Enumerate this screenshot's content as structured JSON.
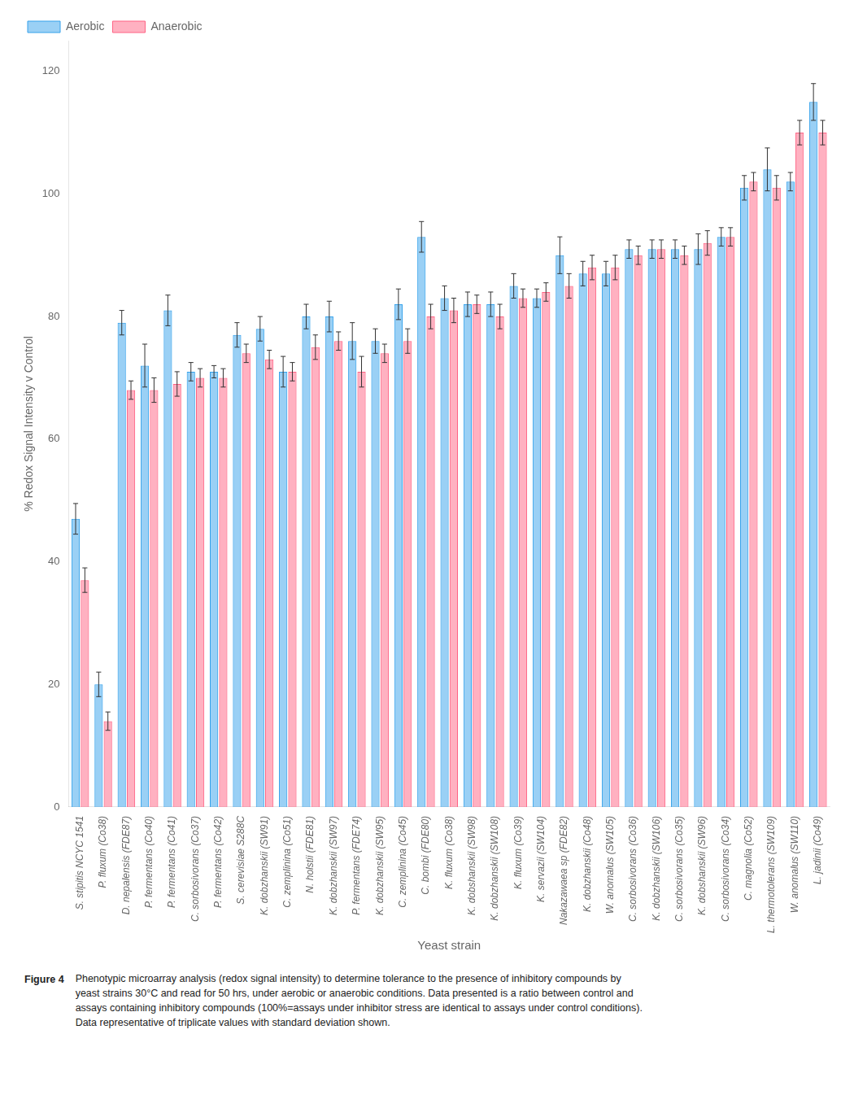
{
  "chart_data": {
    "type": "bar",
    "categories": [
      "S. stipitis NCYC 1541",
      "P. fluxum (Co38)",
      "D. nepalensis (FDE87)",
      "P. fermentans (Co40)",
      "P. fermentans (Co41)",
      "C. sorbosivorans (Co37)",
      "P. fermentans (Co42)",
      "S. cerevisiae S288C",
      "K. dobzhanskii (SW91)",
      "C. zemplinina (Co51)",
      "N. holstii (FDE81)",
      "K. dobzhanskii (SW97)",
      "P. fermentans (FDE74)",
      "K. dobzhanskii (SW95)",
      "C. zemplinina (Co45)",
      "C. bombi (FDE80)",
      "K. fluxum (Co38)",
      "K. dobshanskii (SW98)",
      "K. dobzhanskii (SW108)",
      "K. fluxum (Co39)",
      "K. servazii (SW104)",
      "Nakazawaea sp (FDE82)",
      "K. dobzhanskii (Co48)",
      "W. anomalus (SW105)",
      "C. sorbosivorans (Co36)",
      "K. dobzhanskii (SW106)",
      "C. sorbosivorans (Co35)",
      "K. dobshanskii (SW96)",
      "C. sorbosivorans (Co34)",
      "C. magnolia (Co52)",
      "L. thermotolerans (SW109)",
      "W. anomalus (SW110)",
      "L. jadinii (Co49)"
    ],
    "series": [
      {
        "name": "Aerobic",
        "values": [
          47,
          20,
          79,
          72,
          81,
          71,
          71,
          77,
          78,
          71,
          80,
          80,
          76,
          76,
          82,
          93,
          83,
          82,
          82,
          85,
          83,
          90,
          87,
          87,
          91,
          91,
          91,
          91,
          93,
          101,
          104,
          102,
          115
        ],
        "errors": [
          2.5,
          2.0,
          2.0,
          3.5,
          2.5,
          1.5,
          1.0,
          2.0,
          2.0,
          2.5,
          2.0,
          2.5,
          3.0,
          2.0,
          2.5,
          2.5,
          2.0,
          2.0,
          2.0,
          2.0,
          1.5,
          3.0,
          2.0,
          2.0,
          1.5,
          1.5,
          1.5,
          2.5,
          1.5,
          2.0,
          3.5,
          1.5,
          3.0
        ]
      },
      {
        "name": "Anaerobic",
        "values": [
          37,
          14,
          68,
          68,
          69,
          70,
          70,
          74,
          73,
          71,
          75,
          76,
          71,
          74,
          76,
          80,
          81,
          82,
          80,
          83,
          84,
          85,
          88,
          88,
          90,
          91,
          90,
          92,
          93,
          102,
          101,
          110,
          110
        ],
        "errors": [
          2.0,
          1.5,
          1.5,
          2.0,
          2.0,
          1.5,
          1.5,
          1.5,
          1.5,
          1.5,
          2.0,
          1.5,
          2.5,
          1.5,
          2.0,
          2.0,
          2.0,
          1.5,
          2.0,
          1.5,
          1.5,
          2.0,
          2.0,
          2.0,
          1.5,
          1.5,
          1.5,
          2.0,
          1.5,
          1.5,
          2.0,
          2.0,
          2.0
        ]
      }
    ],
    "xlabel": "Yeast strain",
    "ylabel": "% Redox Signal Intensity v Control",
    "ylim": [
      0,
      125
    ],
    "yticks": [
      0,
      20,
      40,
      60,
      80,
      100,
      120
    ],
    "grid": false,
    "legend": "upper left",
    "fig_label": "Figure 4",
    "caption": [
      "Phenotypic microarray analysis (redox signal intensity) to determine tolerance to the presence of inhibitory compounds by",
      "yeast strains 30°C and read for 50 hrs, under aerobic or anaerobic conditions. Data presented is a ratio between control and",
      "assays containing inhibitory compounds (100%=assays under inhibitor stress are identical to assays under control conditions).",
      "Data representative of triplicate values with standard deviation shown."
    ]
  }
}
